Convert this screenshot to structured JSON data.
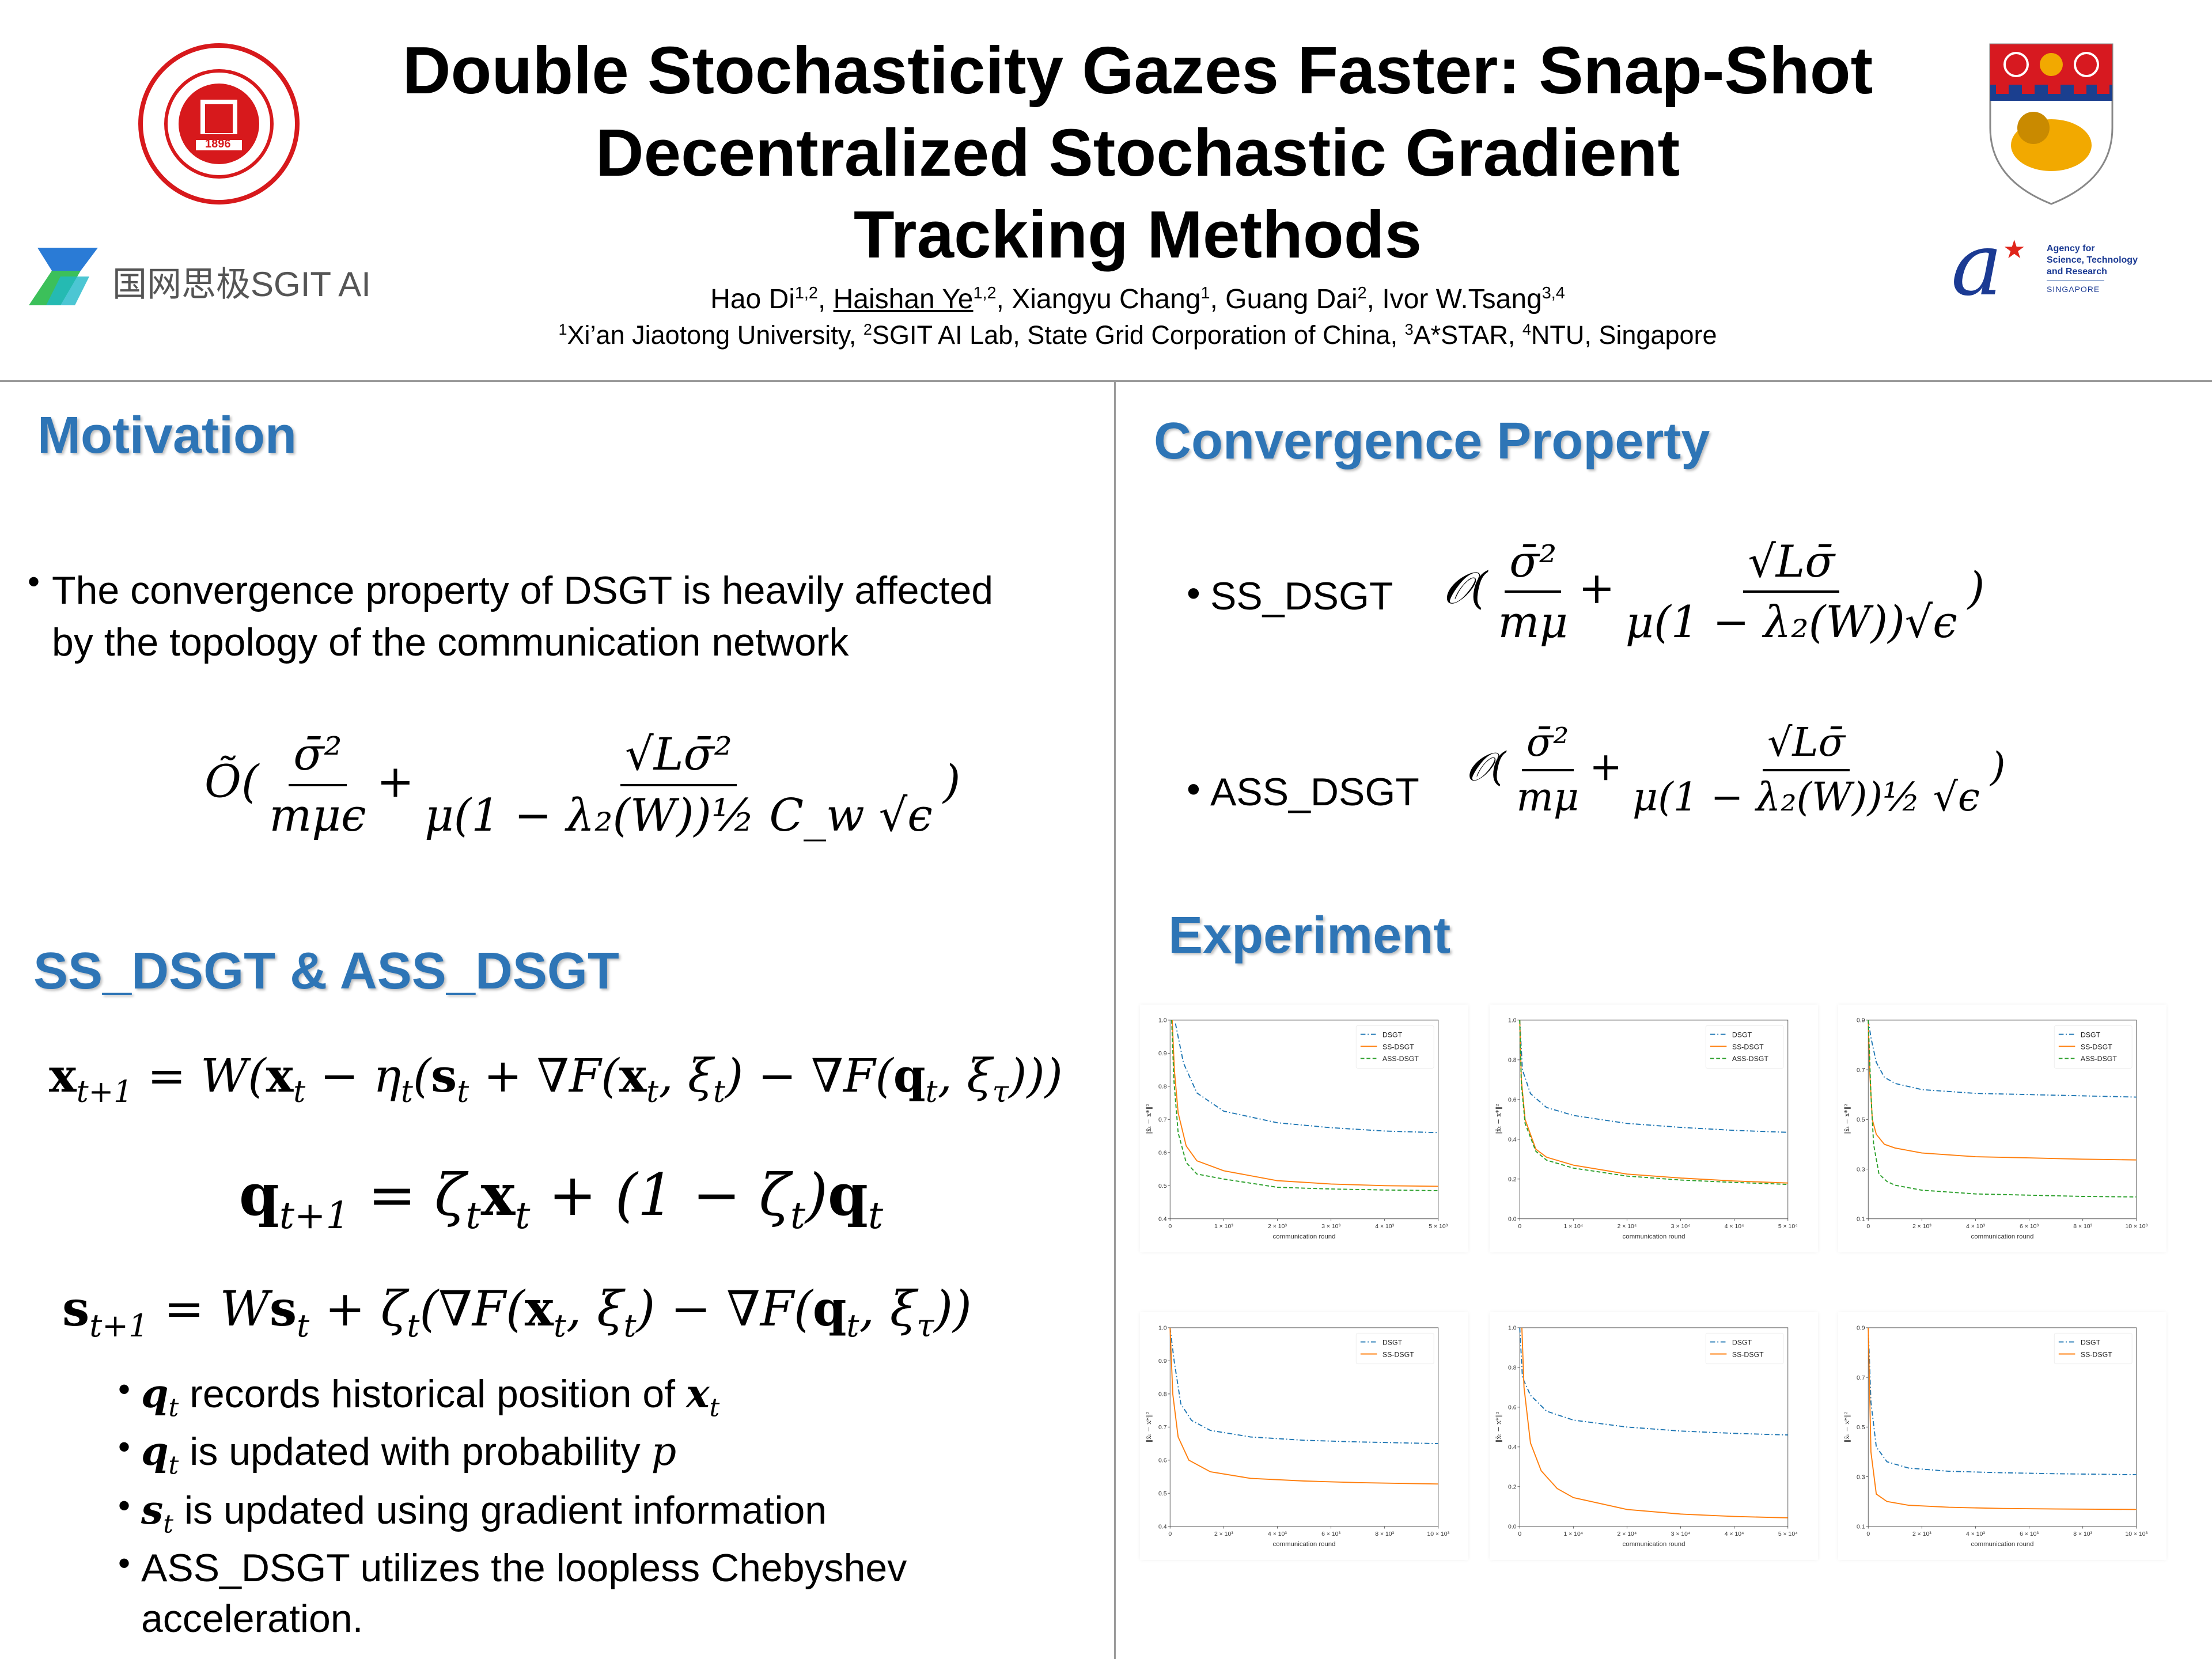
{
  "header": {
    "title_lines": [
      "Double Stochasticity Gazes Faster: Snap-Shot",
      "Decentralized Stochastic Gradient",
      "Tracking Methods"
    ],
    "authors": [
      {
        "name": "Hao Di",
        "sup": "1,2",
        "sep": ", "
      },
      {
        "name": "Haishan Ye",
        "sup": "1,2",
        "sep": ", "
      },
      {
        "name": "Xiangyu Chang",
        "sup": "1",
        "sep": ", "
      },
      {
        "name": "Guang Dai",
        "sup": "2",
        "sep": ", "
      },
      {
        "name": "Ivor W.Tsang",
        "sup": "3,4",
        "sep": ""
      }
    ],
    "affiliations": [
      {
        "sup": "1",
        "text": "Xi’an Jiaotong University, "
      },
      {
        "sup": "2",
        "text": "SGIT AI Lab, State Grid Corporation of China, "
      },
      {
        "sup": "3",
        "text": "A*STAR, "
      },
      {
        "sup": "4",
        "text": "NTU, Singapore"
      }
    ],
    "logos": {
      "xjtu": {
        "text": "XI'AN JIAOTONG UNIVERSITY",
        "year": "1896",
        "color": "#d7191c"
      },
      "sgit": {
        "text": "国网思极SGIT AI"
      },
      "ntu": {
        "colors": [
          "#d71920",
          "#1b3f8f",
          "#f2a900"
        ]
      },
      "astar": {
        "line1": "Agency for",
        "line2": "Science, Technology",
        "line3": "and Research",
        "line4": "SINGAPORE",
        "blue": "#1b3a93",
        "red": "#e0251b"
      }
    }
  },
  "colors": {
    "accent": "#2e75b6",
    "dsgt": "#1f77b4",
    "ss": "#ff7f0e",
    "ass": "#2ca02c"
  },
  "motivation": {
    "heading": "Motivation",
    "bullet_lines": [
      "The convergence property of DSGT is heavily affected",
      "by the topology of the communication network"
    ],
    "formula": {
      "prefix": "Õ(",
      "frac1": {
        "num": "σ̄²",
        "den": "mμϵ"
      },
      "plus": "+",
      "frac2": {
        "num": "√Lσ̄²",
        "den": "μ(1 − λ₂(W))½ C_w √ϵ"
      },
      "suffix": ")"
    }
  },
  "methods": {
    "heading": "SS_DSGT & ASS_DSGT",
    "equations": [
      [
        {
          "m": "x",
          "s": "t+1",
          "b": 1
        },
        {
          "m": " = W("
        },
        {
          "m": "x",
          "s": "t",
          "b": 1
        },
        {
          "m": " − η",
          "s": "t"
        },
        {
          "m": "("
        },
        {
          "m": "s",
          "s": "t",
          "b": 1
        },
        {
          "m": " + ∇F("
        },
        {
          "m": "x",
          "s": "t",
          "b": 1
        },
        {
          "m": ", ξ",
          "s": "t"
        },
        {
          "m": ") − ∇F("
        },
        {
          "m": "q",
          "s": "t",
          "b": 1
        },
        {
          "m": ", ξ",
          "s": "τ"
        },
        {
          "m": ")))"
        }
      ],
      [
        {
          "m": "q",
          "s": "t+1",
          "b": 1
        },
        {
          "m": " = ζ",
          "s": "t"
        },
        {
          "m": "x",
          "s": "t",
          "b": 1
        },
        {
          "m": " + (1 − ζ",
          "s": "t"
        },
        {
          "m": ")"
        },
        {
          "m": "q",
          "s": "t",
          "b": 1
        }
      ],
      [
        {
          "m": "s",
          "s": "t+1",
          "b": 1
        },
        {
          "m": " = W"
        },
        {
          "m": "s",
          "s": "t",
          "b": 1
        },
        {
          "m": " + ζ",
          "s": "t"
        },
        {
          "m": "(∇F("
        },
        {
          "m": "x",
          "s": "t",
          "b": 1
        },
        {
          "m": ", ξ",
          "s": "t"
        },
        {
          "m": ") − ∇F("
        },
        {
          "m": "q",
          "s": "t",
          "b": 1
        },
        {
          "m": ", ξ",
          "s": "τ"
        },
        {
          "m": "))"
        }
      ]
    ],
    "bullets": [
      [
        {
          "m": "q",
          "s": "t",
          "b": 1
        },
        {
          "t": " records historical position of "
        },
        {
          "m": "x",
          "s": "t",
          "b": 1
        }
      ],
      [
        {
          "m": "q",
          "s": "t",
          "b": 1
        },
        {
          "t": " is updated with probability "
        },
        {
          "m": "p"
        }
      ],
      [
        {
          "m": "s",
          "s": "t",
          "b": 1
        },
        {
          "t": " is updated using gradient information"
        }
      ],
      [
        {
          "t": "ASS_DSGT utilizes the loopless Chebyshev"
        }
      ],
      [
        {
          "t": "acceleration."
        }
      ]
    ]
  },
  "convergence": {
    "heading": "Convergence Property",
    "items": [
      {
        "label": "SS_DSGT",
        "prefix": "𝒪(",
        "frac1": {
          "num": "σ̄²",
          "den": "mμ"
        },
        "plus": "+",
        "frac2": {
          "num": "√Lσ̄",
          "den": "μ(1 − λ₂(W))√ϵ"
        },
        "suffix": ")"
      },
      {
        "label": "ASS_DSGT",
        "prefix": "𝒪(",
        "frac1": {
          "num": "σ̄²",
          "den": "mμ"
        },
        "plus": "+",
        "frac2": {
          "num": "√Lσ̄",
          "den": "μ(1 − λ₂(W))½ √ϵ"
        },
        "suffix": ")"
      }
    ]
  },
  "experiment": {
    "heading": "Experiment"
  },
  "chart_data": [
    {
      "type": "line",
      "xlabel": "communication round",
      "ylabel": "‖x̄ₜ − x*‖²",
      "xlim": [
        0,
        5000
      ],
      "ylim": [
        0.4,
        1.0
      ],
      "xticks": [
        0,
        1000,
        2000,
        3000,
        4000,
        5000
      ],
      "xtick_labels": [
        "0",
        "1 × 10³",
        "2 × 10³",
        "3 × 10³",
        "4 × 10³",
        "5 × 10³"
      ],
      "yticks": [
        0.4,
        0.5,
        0.6,
        0.7,
        0.8,
        0.9,
        1.0
      ],
      "ytick_labels": [
        "0.4",
        "0.5",
        "0.6",
        "0.7",
        "0.8",
        "0.9",
        "1.0"
      ],
      "legend": "top-right",
      "series": [
        {
          "name": "DSGT",
          "style": "dashdot",
          "x": [
            100,
            250,
            500,
            1000,
            2000,
            3000,
            4000,
            5000
          ],
          "y": [
            0.99,
            0.87,
            0.78,
            0.725,
            0.69,
            0.675,
            0.665,
            0.66
          ]
        },
        {
          "name": "SS-DSGT",
          "style": "solid",
          "x": [
            40,
            80,
            150,
            300,
            500,
            1000,
            2000,
            3000,
            4000,
            5000
          ],
          "y": [
            1.0,
            0.85,
            0.72,
            0.62,
            0.575,
            0.545,
            0.515,
            0.505,
            0.5,
            0.498
          ]
        },
        {
          "name": "ASS-DSGT",
          "style": "dashed",
          "x": [
            30,
            70,
            150,
            300,
            500,
            1000,
            2000,
            3000,
            4000,
            5000
          ],
          "y": [
            1.0,
            0.82,
            0.66,
            0.57,
            0.535,
            0.52,
            0.495,
            0.49,
            0.487,
            0.485
          ]
        }
      ]
    },
    {
      "type": "line",
      "xlabel": "communication round",
      "ylabel": "‖x̄ₜ − x*‖²",
      "xlim": [
        0,
        50000
      ],
      "ylim": [
        0.0,
        1.0
      ],
      "xticks": [
        0,
        10000,
        20000,
        30000,
        40000,
        50000
      ],
      "xtick_labels": [
        "0",
        "1 × 10⁴",
        "2 × 10⁴",
        "3 × 10⁴",
        "4 × 10⁴",
        "5 × 10⁴"
      ],
      "yticks": [
        0.0,
        0.2,
        0.4,
        0.6,
        0.8,
        1.0
      ],
      "ytick_labels": [
        "0.0",
        "0.2",
        "0.4",
        "0.6",
        "0.8",
        "1.0"
      ],
      "legend": "top-right",
      "series": [
        {
          "name": "DSGT",
          "style": "dashdot",
          "x": [
            0,
            500,
            2000,
            5000,
            10000,
            20000,
            30000,
            40000,
            50000
          ],
          "y": [
            1.0,
            0.75,
            0.63,
            0.56,
            0.52,
            0.48,
            0.46,
            0.445,
            0.435
          ]
        },
        {
          "name": "SS-DSGT",
          "style": "solid",
          "x": [
            0,
            300,
            1000,
            3000,
            5000,
            10000,
            20000,
            30000,
            40000,
            50000
          ],
          "y": [
            1.0,
            0.7,
            0.5,
            0.35,
            0.31,
            0.27,
            0.225,
            0.205,
            0.19,
            0.18
          ]
        },
        {
          "name": "ASS-DSGT",
          "style": "dashed",
          "x": [
            0,
            300,
            1000,
            3000,
            5000,
            10000,
            20000,
            30000,
            40000,
            50000
          ],
          "y": [
            1.0,
            0.68,
            0.48,
            0.34,
            0.295,
            0.255,
            0.215,
            0.195,
            0.183,
            0.173
          ]
        }
      ]
    },
    {
      "type": "line",
      "xlabel": "communication round",
      "ylabel": "‖x̄ₜ − x*‖²",
      "xlim": [
        0,
        10000
      ],
      "ylim": [
        0.1,
        0.9
      ],
      "xticks": [
        0,
        2000,
        4000,
        6000,
        8000,
        10000
      ],
      "xtick_labels": [
        "0",
        "2 × 10³",
        "4 × 10³",
        "6 × 10³",
        "8 × 10³",
        "10 × 10³"
      ],
      "yticks": [
        0.1,
        0.3,
        0.5,
        0.7,
        0.9
      ],
      "ytick_labels": [
        "0.1",
        "0.3",
        "0.5",
        "0.7",
        "0.9"
      ],
      "legend": "top-right",
      "series": [
        {
          "name": "DSGT",
          "style": "dashdot",
          "x": [
            0,
            100,
            300,
            600,
            1000,
            2000,
            4000,
            6000,
            8000,
            10000
          ],
          "y": [
            0.9,
            0.83,
            0.73,
            0.67,
            0.645,
            0.62,
            0.605,
            0.6,
            0.595,
            0.59
          ]
        },
        {
          "name": "SS-DSGT",
          "style": "solid",
          "x": [
            0,
            50,
            150,
            300,
            600,
            1000,
            2000,
            4000,
            6000,
            8000,
            10000
          ],
          "y": [
            0.9,
            0.7,
            0.5,
            0.44,
            0.4,
            0.385,
            0.365,
            0.35,
            0.345,
            0.34,
            0.337
          ]
        },
        {
          "name": "ASS-DSGT",
          "style": "dashed",
          "x": [
            0,
            100,
            200,
            400,
            700,
            1000,
            2000,
            4000,
            6000,
            8000,
            10000
          ],
          "y": [
            0.9,
            0.6,
            0.4,
            0.28,
            0.25,
            0.235,
            0.215,
            0.2,
            0.195,
            0.19,
            0.188
          ]
        }
      ]
    },
    {
      "type": "line",
      "xlabel": "communication round",
      "ylabel": "‖x̄ₜ − x*‖²",
      "xlim": [
        0,
        10000
      ],
      "ylim": [
        0.4,
        1.0
      ],
      "xticks": [
        0,
        2000,
        4000,
        6000,
        8000,
        10000
      ],
      "xtick_labels": [
        "0",
        "2 × 10³",
        "4 × 10³",
        "6 × 10³",
        "8 × 10³",
        "10 × 10³"
      ],
      "yticks": [
        0.4,
        0.5,
        0.6,
        0.7,
        0.8,
        0.9,
        1.0
      ],
      "ytick_labels": [
        "0.4",
        "0.5",
        "0.6",
        "0.7",
        "0.8",
        "0.9",
        "1.0"
      ],
      "legend": "top-right",
      "series": [
        {
          "name": "DSGT",
          "style": "dashdot",
          "x": [
            0,
            150,
            400,
            800,
            1500,
            3000,
            5000,
            7000,
            10000
          ],
          "y": [
            1.0,
            0.9,
            0.77,
            0.72,
            0.69,
            0.67,
            0.66,
            0.655,
            0.65
          ]
        },
        {
          "name": "SS-DSGT",
          "style": "solid",
          "x": [
            0,
            100,
            300,
            700,
            1500,
            3000,
            5000,
            7000,
            10000
          ],
          "y": [
            1.0,
            0.8,
            0.67,
            0.6,
            0.565,
            0.545,
            0.537,
            0.532,
            0.528
          ]
        }
      ]
    },
    {
      "type": "line",
      "xlabel": "communication round",
      "ylabel": "‖x̄ₜ − x*‖²",
      "xlim": [
        0,
        50000
      ],
      "ylim": [
        0.0,
        1.0
      ],
      "xticks": [
        0,
        10000,
        20000,
        30000,
        40000,
        50000
      ],
      "xtick_labels": [
        "0",
        "1 × 10⁴",
        "2 × 10⁴",
        "3 × 10⁴",
        "4 × 10⁴",
        "5 × 10⁴"
      ],
      "yticks": [
        0.0,
        0.2,
        0.4,
        0.6,
        0.8,
        1.0
      ],
      "ytick_labels": [
        "0.0",
        "0.2",
        "0.4",
        "0.6",
        "0.8",
        "1.0"
      ],
      "legend": "top-right",
      "series": [
        {
          "name": "DSGT",
          "style": "dashdot",
          "x": [
            0,
            500,
            2000,
            5000,
            10000,
            20000,
            30000,
            40000,
            50000
          ],
          "y": [
            1.0,
            0.75,
            0.66,
            0.58,
            0.535,
            0.5,
            0.48,
            0.468,
            0.46
          ]
        },
        {
          "name": "SS-DSGT",
          "style": "solid",
          "x": [
            400,
            800,
            2000,
            4000,
            7000,
            10000,
            20000,
            30000,
            40000,
            50000
          ],
          "y": [
            1.0,
            0.7,
            0.42,
            0.28,
            0.19,
            0.145,
            0.085,
            0.062,
            0.05,
            0.043
          ]
        }
      ]
    },
    {
      "type": "line",
      "xlabel": "communication round",
      "ylabel": "‖x̄ₜ − x*‖²",
      "xlim": [
        0,
        10000
      ],
      "ylim": [
        0.1,
        0.9
      ],
      "xticks": [
        0,
        2000,
        4000,
        6000,
        8000,
        10000
      ],
      "xtick_labels": [
        "0",
        "2 × 10³",
        "4 × 10³",
        "6 × 10³",
        "8 × 10³",
        "10 × 10³"
      ],
      "yticks": [
        0.1,
        0.3,
        0.5,
        0.7,
        0.9
      ],
      "ytick_labels": [
        "0.1",
        "0.3",
        "0.5",
        "0.7",
        "0.9"
      ],
      "legend": "top-right",
      "series": [
        {
          "name": "DSGT",
          "style": "dashdot",
          "x": [
            0,
            100,
            300,
            700,
            1500,
            3000,
            5000,
            7000,
            10000
          ],
          "y": [
            0.9,
            0.6,
            0.42,
            0.36,
            0.335,
            0.322,
            0.316,
            0.312,
            0.308
          ]
        },
        {
          "name": "SS-DSGT",
          "style": "solid",
          "x": [
            0,
            100,
            300,
            700,
            1500,
            3000,
            5000,
            7000,
            10000
          ],
          "y": [
            0.9,
            0.4,
            0.23,
            0.2,
            0.185,
            0.177,
            0.172,
            0.17,
            0.168
          ]
        }
      ]
    }
  ]
}
